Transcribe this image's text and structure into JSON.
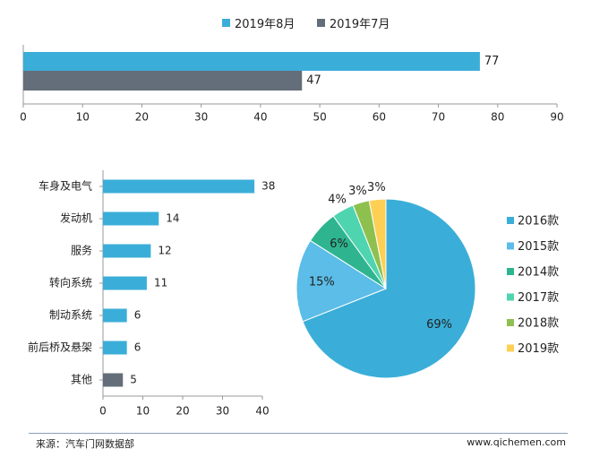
{
  "chart_data": [
    {
      "type": "bar",
      "orientation": "horizontal",
      "series": [
        {
          "name": "2019年8月",
          "values": [
            77
          ],
          "color": "#3aaed8"
        },
        {
          "name": "2019年7月",
          "values": [
            47
          ],
          "color": "#646e7a"
        }
      ],
      "xlim": [
        0,
        90
      ],
      "xticks": [
        0,
        10,
        20,
        30,
        40,
        50,
        60,
        70,
        80,
        90
      ],
      "legend_position": "top-center",
      "grid": false
    },
    {
      "type": "bar",
      "orientation": "horizontal",
      "categories": [
        "车身及电气",
        "发动机",
        "服务",
        "转向系统",
        "制动系统",
        "前后桥及悬架",
        "其他"
      ],
      "values": [
        38,
        14,
        12,
        11,
        6,
        6,
        5
      ],
      "colors": [
        "#3aaed8",
        "#3aaed8",
        "#3aaed8",
        "#3aaed8",
        "#3aaed8",
        "#3aaed8",
        "#646e7a"
      ],
      "xlim": [
        0,
        40
      ],
      "xticks": [
        0,
        10,
        20,
        30,
        40
      ],
      "grid": false
    },
    {
      "type": "pie",
      "labels": [
        "2016款",
        "2015款",
        "2014款",
        "2017款",
        "2018款",
        "2019款"
      ],
      "values": [
        69,
        15,
        6,
        4,
        3,
        3
      ],
      "value_labels": [
        "69%",
        "15%",
        "6%",
        "4%",
        "3%",
        "3%"
      ],
      "colors": [
        "#3aaed8",
        "#5bbde8",
        "#2eb590",
        "#4fd4b0",
        "#8dc04e",
        "#fdd055"
      ],
      "legend_position": "right"
    }
  ],
  "footer": {
    "source": "来源：汽车门网数据部",
    "website": "www.qichemen.com"
  }
}
